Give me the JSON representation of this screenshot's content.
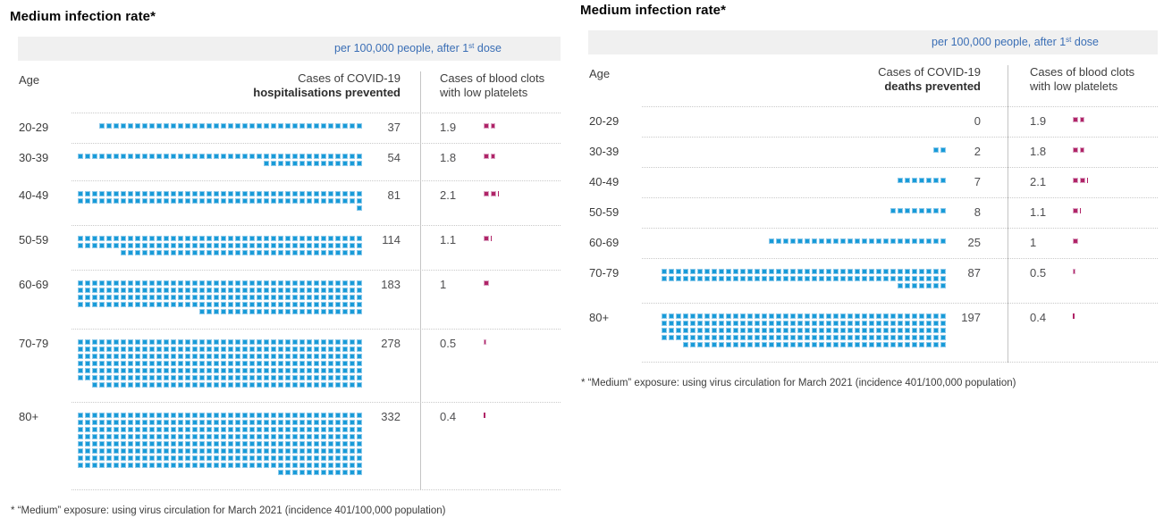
{
  "colors": {
    "benefit_square": "#189bd8",
    "benefit_square_border": "#8cc9ea",
    "risk_square": "#b02467",
    "risk_square_border": "#dba6c4",
    "unit_text_blue": "#3a6eb5"
  },
  "layout_hints": {
    "squares_per_waffle_row": 40,
    "waffle_alignment": "right"
  },
  "charts": [
    {
      "title": "Medium infection rate*",
      "unit": {
        "pre": "per 100,000 people, after 1",
        "sup": "st",
        "post": " dose"
      },
      "header": {
        "age": "Age",
        "benefit_line1": "Cases of COVID-19",
        "benefit_line2": "hospitalisations prevented",
        "risk_line1": "Cases of blood clots",
        "risk_line2": "with low platelets"
      },
      "rows": [
        {
          "age": "20-29",
          "benefit": 37,
          "benefit_label": "37",
          "risk": 1.9,
          "risk_label": "1.9"
        },
        {
          "age": "30-39",
          "benefit": 54,
          "benefit_label": "54",
          "risk": 1.8,
          "risk_label": "1.8"
        },
        {
          "age": "40-49",
          "benefit": 81,
          "benefit_label": "81",
          "risk": 2.1,
          "risk_label": "2.1"
        },
        {
          "age": "50-59",
          "benefit": 114,
          "benefit_label": "114",
          "risk": 1.1,
          "risk_label": "1.1"
        },
        {
          "age": "60-69",
          "benefit": 183,
          "benefit_label": "183",
          "risk": 1,
          "risk_label": "1"
        },
        {
          "age": "70-79",
          "benefit": 278,
          "benefit_label": "278",
          "risk": 0.5,
          "risk_label": "0.5"
        },
        {
          "age": "80+",
          "benefit": 332,
          "benefit_label": "332",
          "risk": 0.4,
          "risk_label": "0.4"
        }
      ],
      "footnote": "* “Medium” exposure: using virus circulation for March 2021 (incidence 401/100,000 population)"
    },
    {
      "title": "Medium infection rate*",
      "unit": {
        "pre": "per 100,000 people, after 1",
        "sup": "st",
        "post": " dose"
      },
      "header": {
        "age": "Age",
        "benefit_line1": "Cases of COVID-19",
        "benefit_line2": "deaths prevented",
        "risk_line1": "Cases of blood clots",
        "risk_line2": "with low platelets"
      },
      "rows": [
        {
          "age": "20-29",
          "benefit": 0,
          "benefit_label": "0",
          "risk": 1.9,
          "risk_label": "1.9"
        },
        {
          "age": "30-39",
          "benefit": 2,
          "benefit_label": "2",
          "risk": 1.8,
          "risk_label": "1.8"
        },
        {
          "age": "40-49",
          "benefit": 7,
          "benefit_label": "7",
          "risk": 2.1,
          "risk_label": "2.1"
        },
        {
          "age": "50-59",
          "benefit": 8,
          "benefit_label": "8",
          "risk": 1.1,
          "risk_label": "1.1"
        },
        {
          "age": "60-69",
          "benefit": 25,
          "benefit_label": "25",
          "risk": 1,
          "risk_label": "1"
        },
        {
          "age": "70-79",
          "benefit": 87,
          "benefit_label": "87",
          "risk": 0.5,
          "risk_label": "0.5"
        },
        {
          "age": "80+",
          "benefit": 197,
          "benefit_label": "197",
          "risk": 0.4,
          "risk_label": "0.4"
        }
      ],
      "footnote": "* “Medium” exposure: using virus circulation for March 2021 (incidence 401/100,000 population)"
    }
  ],
  "chart_data": [
    {
      "type": "bar",
      "variant": "waffle",
      "title": "Medium infection rate*",
      "subtitle": "per 100,000 people, after 1st dose",
      "categories": [
        "20-29",
        "30-39",
        "40-49",
        "50-59",
        "60-69",
        "70-79",
        "80+"
      ],
      "series": [
        {
          "name": "Cases of COVID-19 hospitalisations prevented",
          "values": [
            37,
            54,
            81,
            114,
            183,
            278,
            332
          ]
        },
        {
          "name": "Cases of blood clots with low platelets",
          "values": [
            1.9,
            1.8,
            2.1,
            1.1,
            1,
            0.5,
            0.4
          ]
        }
      ],
      "xlabel": "",
      "ylabel": "Age",
      "legend_position": "column-headers",
      "grid": "dotted-row-separators",
      "footnote": "* “Medium” exposure: using virus circulation for March 2021 (incidence 401/100,000 population)"
    },
    {
      "type": "bar",
      "variant": "waffle",
      "title": "Medium infection rate*",
      "subtitle": "per 100,000 people, after 1st dose",
      "categories": [
        "20-29",
        "30-39",
        "40-49",
        "50-59",
        "60-69",
        "70-79",
        "80+"
      ],
      "series": [
        {
          "name": "Cases of COVID-19 deaths prevented",
          "values": [
            0,
            2,
            7,
            8,
            25,
            87,
            197
          ]
        },
        {
          "name": "Cases of blood clots with low platelets",
          "values": [
            1.9,
            1.8,
            2.1,
            1.1,
            1,
            0.5,
            0.4
          ]
        }
      ],
      "xlabel": "",
      "ylabel": "Age",
      "legend_position": "column-headers",
      "grid": "dotted-row-separators",
      "footnote": "* “Medium” exposure: using virus circulation for March 2021 (incidence 401/100,000 population)"
    }
  ]
}
